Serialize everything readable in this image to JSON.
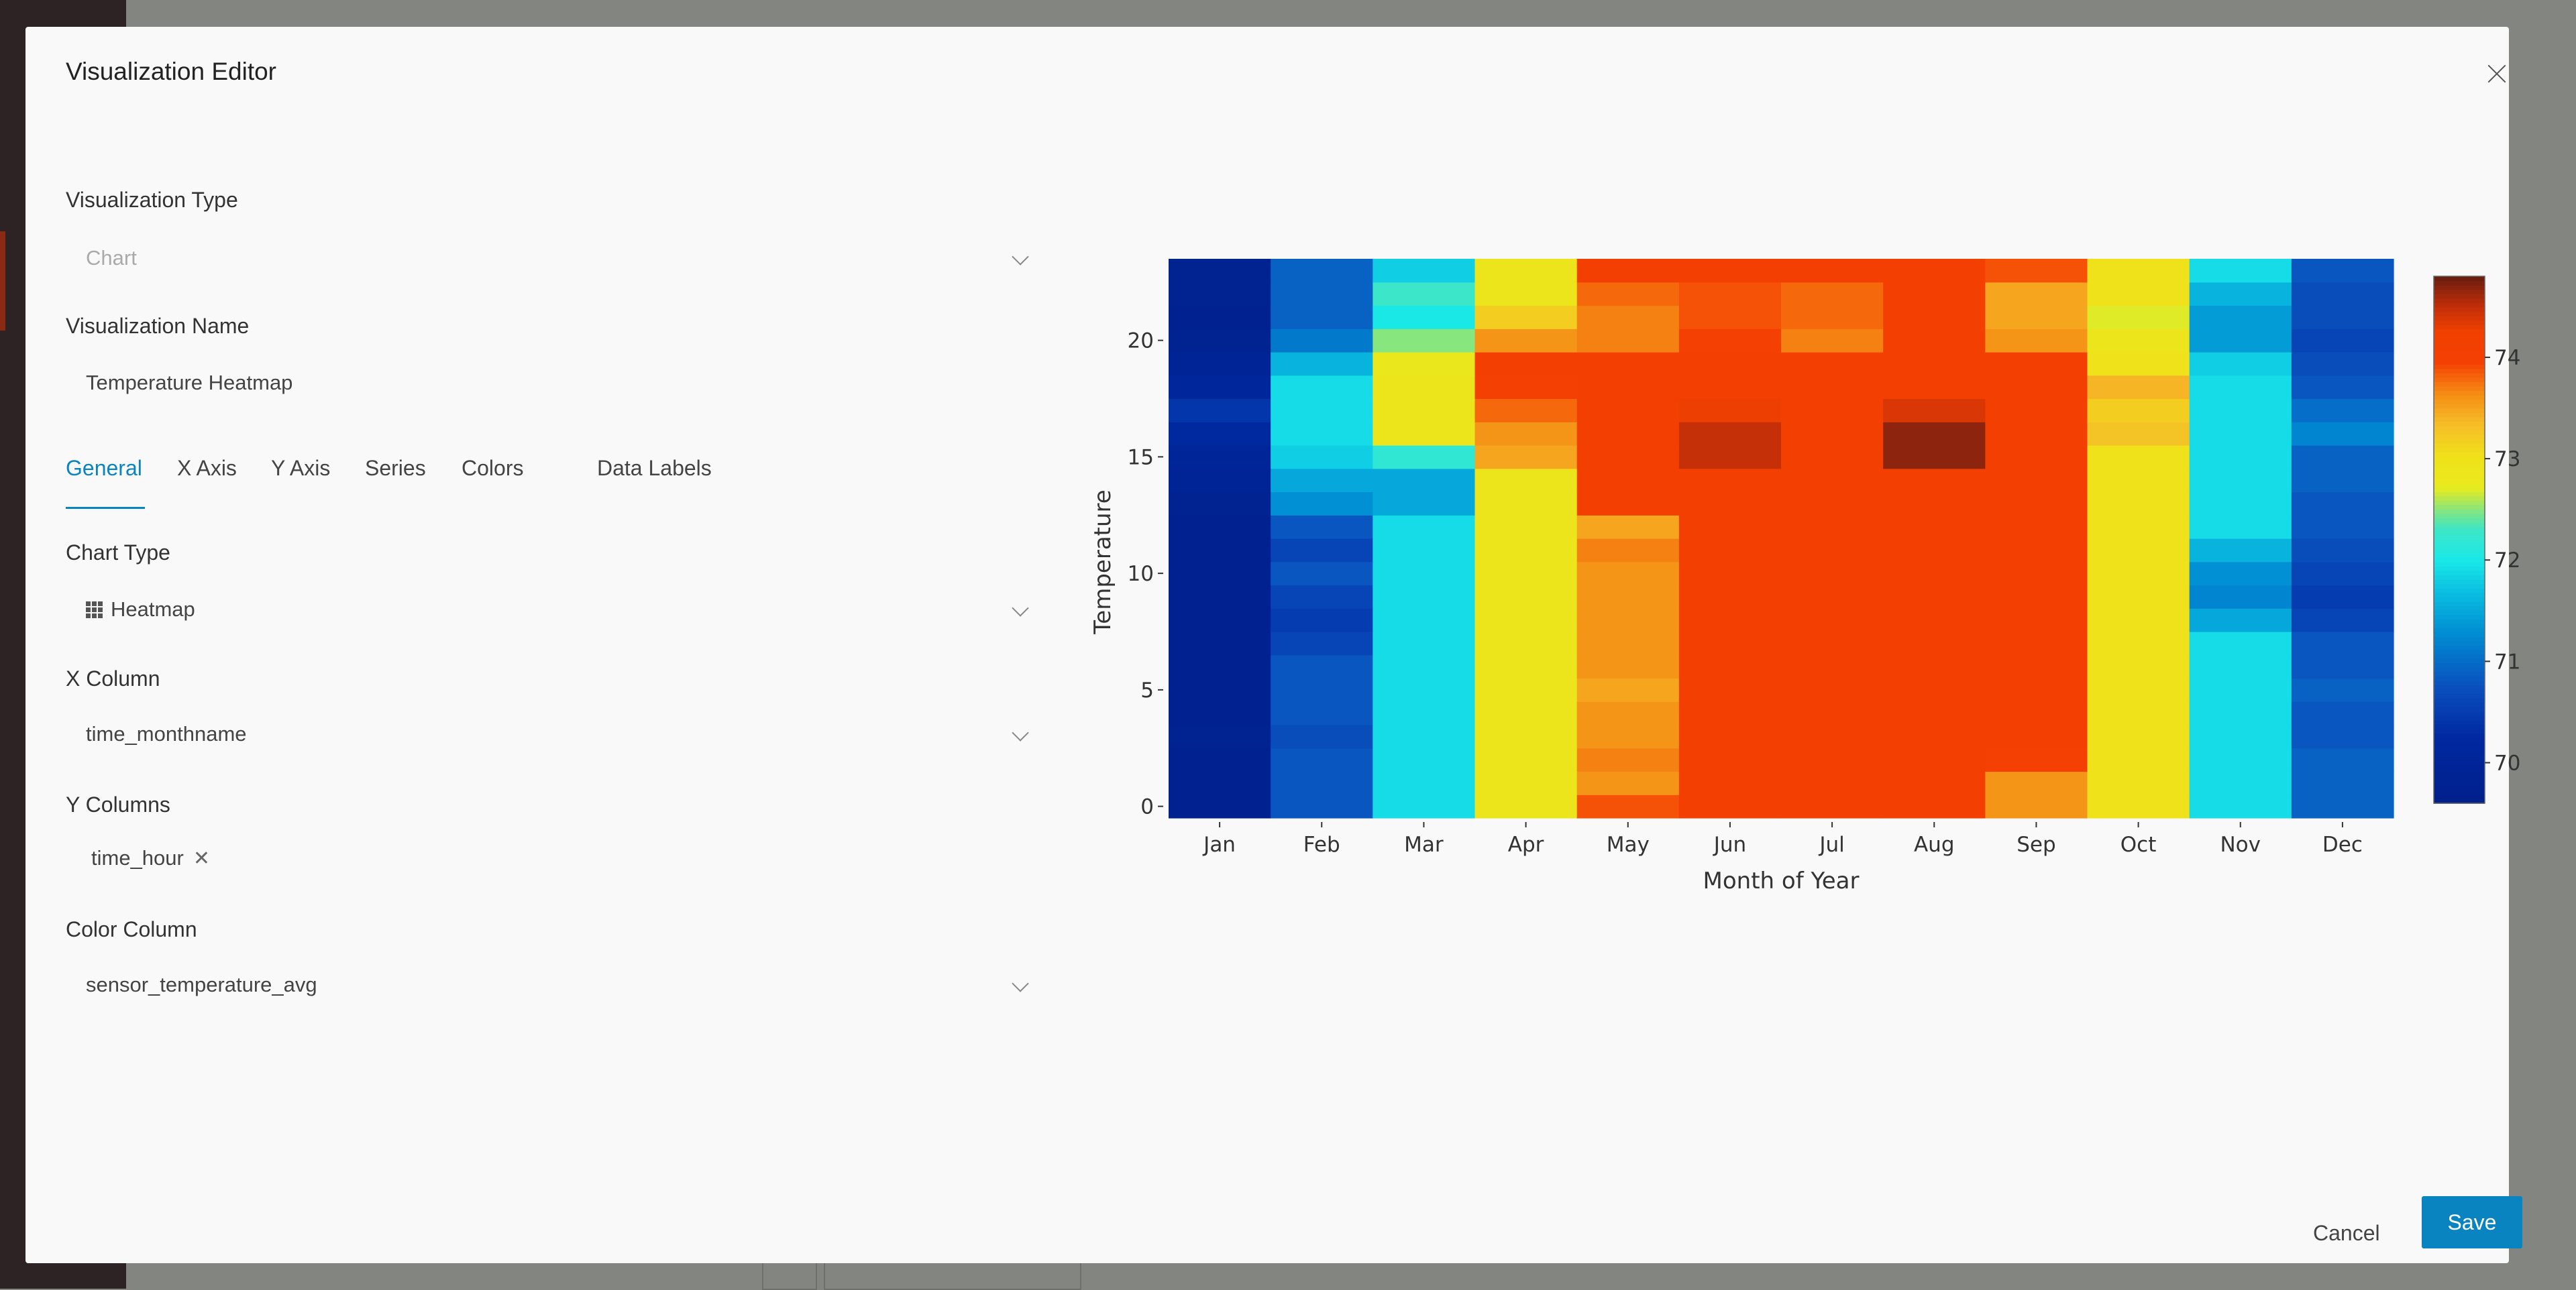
{
  "modal": {
    "title": "Visualization Editor"
  },
  "form": {
    "vis_type_label": "Visualization Type",
    "vis_type_value": "Chart",
    "vis_name_label": "Visualization Name",
    "vis_name_value": "Temperature Heatmap",
    "tabs": [
      {
        "label": "General",
        "active": true
      },
      {
        "label": "X Axis",
        "active": false
      },
      {
        "label": "Y Axis",
        "active": false
      },
      {
        "label": "Series",
        "active": false
      },
      {
        "label": "Colors",
        "active": false
      },
      {
        "label": "Data Labels",
        "active": false
      }
    ],
    "chart_type_label": "Chart Type",
    "chart_type_value": "Heatmap",
    "chart_type_icon": "grid-icon",
    "x_column_label": "X Column",
    "x_column_value": "time_monthname",
    "y_columns_label": "Y Columns",
    "y_columns_tags": [
      "time_hour"
    ],
    "color_column_label": "Color Column",
    "color_column_value": "sensor_temperature_avg"
  },
  "footer": {
    "cancel_label": "Cancel",
    "save_label": "Save"
  },
  "colors": {
    "accent": "#0a84c1"
  },
  "chart_data": {
    "type": "heatmap",
    "xlabel": "Month of Year",
    "ylabel": "Temperature",
    "categories": [
      "Jan",
      "Feb",
      "Mar",
      "Apr",
      "May",
      "Jun",
      "Jul",
      "Aug",
      "Sep",
      "Oct",
      "Nov",
      "Dec"
    ],
    "y_hours": [
      0,
      1,
      2,
      3,
      4,
      5,
      6,
      7,
      8,
      9,
      10,
      11,
      12,
      13,
      14,
      15,
      16,
      17,
      18,
      19,
      20,
      21,
      22,
      23
    ],
    "y_ticks": [
      0,
      5,
      10,
      15,
      20
    ],
    "colorbar": {
      "min": 69.6,
      "max": 74.8,
      "ticks": [
        70,
        71,
        72,
        73,
        74
      ]
    },
    "values": [
      [
        69.7,
        70.8,
        71.9,
        72.9,
        73.9,
        74.1,
        74.1,
        74.1,
        73.6,
        73.0,
        71.9,
        70.9
      ],
      [
        69.7,
        70.8,
        71.9,
        72.9,
        73.6,
        74.1,
        74.1,
        74.1,
        73.6,
        73.0,
        71.9,
        70.9
      ],
      [
        69.7,
        70.8,
        71.9,
        72.9,
        73.7,
        74.1,
        74.1,
        74.1,
        74.0,
        73.0,
        71.9,
        70.9
      ],
      [
        69.8,
        70.7,
        71.9,
        72.9,
        73.6,
        74.1,
        74.1,
        74.1,
        74.1,
        73.0,
        71.9,
        70.8
      ],
      [
        69.7,
        70.8,
        71.9,
        72.9,
        73.6,
        74.1,
        74.1,
        74.1,
        74.1,
        73.0,
        71.9,
        70.8
      ],
      [
        69.7,
        70.8,
        71.9,
        72.9,
        73.5,
        74.1,
        74.1,
        74.1,
        74.1,
        73.0,
        71.9,
        70.9
      ],
      [
        69.7,
        70.8,
        71.9,
        72.9,
        73.6,
        74.1,
        74.1,
        74.1,
        74.1,
        73.0,
        71.9,
        70.8
      ],
      [
        69.7,
        70.6,
        71.9,
        72.9,
        73.6,
        74.1,
        74.1,
        74.1,
        74.1,
        73.0,
        71.9,
        70.8
      ],
      [
        69.7,
        70.5,
        71.9,
        72.9,
        73.6,
        74.1,
        74.1,
        74.1,
        74.1,
        73.0,
        71.5,
        70.6
      ],
      [
        69.7,
        70.6,
        71.9,
        72.9,
        73.6,
        74.1,
        74.1,
        74.1,
        74.1,
        73.0,
        71.2,
        70.5
      ],
      [
        69.7,
        70.8,
        71.9,
        72.9,
        73.6,
        74.1,
        74.1,
        74.1,
        74.1,
        73.0,
        71.3,
        70.6
      ],
      [
        69.7,
        70.6,
        71.9,
        72.9,
        73.7,
        74.1,
        74.1,
        74.1,
        74.1,
        73.0,
        71.6,
        70.7
      ],
      [
        69.7,
        70.8,
        71.9,
        72.9,
        73.5,
        74.1,
        74.1,
        74.1,
        74.1,
        73.0,
        71.9,
        70.8
      ],
      [
        69.8,
        71.3,
        71.5,
        72.9,
        74.1,
        74.1,
        74.1,
        74.1,
        74.1,
        73.0,
        71.9,
        70.8
      ],
      [
        69.9,
        71.5,
        71.5,
        72.9,
        74.1,
        74.1,
        74.1,
        74.1,
        74.1,
        73.0,
        71.9,
        70.9
      ],
      [
        70.0,
        71.8,
        72.2,
        73.5,
        74.1,
        74.5,
        74.1,
        74.7,
        74.1,
        73.0,
        71.9,
        70.9
      ],
      [
        70.2,
        71.9,
        72.9,
        73.6,
        74.1,
        74.5,
        74.1,
        74.7,
        74.1,
        73.3,
        71.9,
        71.2
      ],
      [
        70.4,
        71.9,
        72.9,
        73.8,
        74.1,
        74.3,
        74.1,
        74.4,
        74.1,
        73.2,
        71.9,
        71.0
      ],
      [
        70.1,
        71.9,
        72.9,
        74.0,
        74.1,
        74.1,
        74.1,
        74.1,
        74.1,
        73.4,
        71.9,
        70.8
      ],
      [
        69.9,
        71.6,
        72.8,
        74.1,
        74.1,
        74.1,
        74.1,
        74.1,
        74.1,
        73.0,
        71.8,
        70.7
      ],
      [
        69.8,
        71.1,
        72.5,
        73.6,
        73.7,
        74.0,
        73.7,
        74.1,
        73.6,
        72.9,
        71.4,
        70.6
      ],
      [
        69.7,
        70.9,
        72.0,
        73.2,
        73.7,
        73.9,
        73.8,
        74.1,
        73.5,
        72.7,
        71.4,
        70.7
      ],
      [
        69.8,
        70.9,
        72.3,
        72.9,
        73.8,
        73.9,
        73.8,
        74.1,
        73.5,
        73.0,
        71.6,
        70.7
      ],
      [
        69.8,
        70.9,
        71.8,
        72.9,
        74.1,
        74.1,
        74.1,
        74.1,
        73.9,
        73.0,
        71.9,
        70.8
      ]
    ]
  }
}
